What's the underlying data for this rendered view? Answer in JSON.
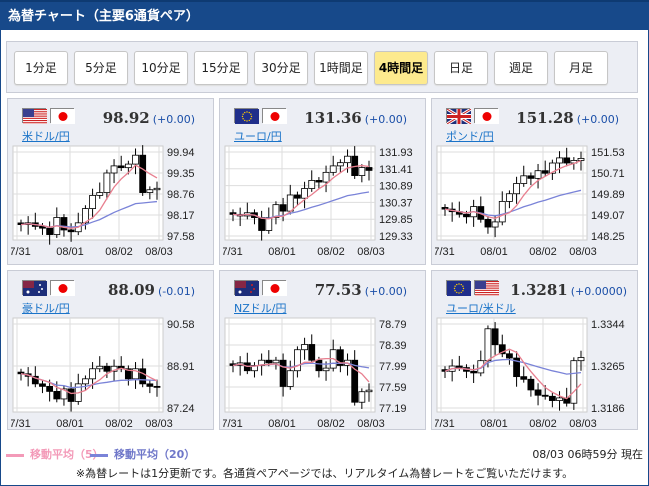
{
  "header": {
    "title": "為替チャート（主要6通貨ペア）"
  },
  "tabs": [
    {
      "label": "1分足"
    },
    {
      "label": "5分足"
    },
    {
      "label": "10分足"
    },
    {
      "label": "15分足"
    },
    {
      "label": "30分足"
    },
    {
      "label": "1時間足"
    },
    {
      "label": "4時間足",
      "active": true
    },
    {
      "label": "日足"
    },
    {
      "label": "週足"
    },
    {
      "label": "月足"
    }
  ],
  "colors": {
    "header": "#17498a",
    "active_tab": "#fdea8e",
    "ma5": "#e87f8f",
    "ma20": "#7a83d8",
    "change": "#1b4fa8",
    "link": "#1a73c8"
  },
  "panels": [
    {
      "pair": "米ドル/円",
      "flags": [
        "us-flag",
        "jp-flag"
      ],
      "price": "98.92",
      "change": "(+0.00)",
      "yticks": [
        "99.94",
        "99.35",
        "98.76",
        "98.17",
        "97.58"
      ],
      "xticks": [
        "07/31",
        "08/01",
        "08/02",
        "08/03"
      ],
      "chart_data": {
        "type": "candlestick",
        "ylim": [
          97.58,
          99.94
        ],
        "close": [
          97.9,
          97.95,
          97.85,
          97.8,
          97.62,
          98.1,
          97.75,
          97.7,
          97.95,
          98.35,
          98.72,
          98.8,
          99.35,
          99.55,
          99.5,
          99.6,
          99.85,
          98.8,
          98.88,
          98.92
        ]
      }
    },
    {
      "pair": "ユーロ/円",
      "flags": [
        "eu-flag",
        "jp-flag"
      ],
      "price": "131.36",
      "change": "(+0.00)",
      "yticks": [
        "131.93",
        "131.41",
        "130.89",
        "130.37",
        "129.85",
        "129.33"
      ],
      "xticks": [
        "07/31",
        "08/01",
        "08/02",
        "08/03"
      ],
      "chart_data": {
        "type": "candlestick",
        "ylim": [
          129.33,
          131.93
        ],
        "close": [
          130.0,
          129.95,
          130.05,
          129.9,
          129.5,
          129.9,
          130.3,
          130.1,
          130.6,
          130.5,
          130.8,
          131.05,
          131.0,
          131.3,
          131.5,
          131.6,
          131.8,
          131.2,
          131.45,
          131.36
        ]
      }
    },
    {
      "pair": "ポンド/円",
      "flags": [
        "uk-flag",
        "jp-flag"
      ],
      "price": "151.28",
      "change": "(+0.00)",
      "yticks": [
        "151.53",
        "150.71",
        "149.89",
        "149.07",
        "148.25"
      ],
      "xticks": [
        "07/31",
        "08/01",
        "08/02",
        "08/03"
      ],
      "chart_data": {
        "type": "candlestick",
        "ylim": [
          148.25,
          151.53
        ],
        "close": [
          149.3,
          149.2,
          149.1,
          149.0,
          149.4,
          148.9,
          148.6,
          148.8,
          149.6,
          149.9,
          150.3,
          150.6,
          150.5,
          150.8,
          150.7,
          151.1,
          151.3,
          151.1,
          151.2,
          151.28
        ]
      }
    },
    {
      "pair": "豪ドル/円",
      "flags": [
        "au-flag",
        "jp-flag"
      ],
      "price": "88.09",
      "change": "(-0.01)",
      "yticks": [
        "90.58",
        "88.91",
        "87.24"
      ],
      "xticks": [
        "07/31",
        "08/01",
        "08/02",
        "08/03"
      ],
      "chart_data": {
        "type": "candlestick",
        "ylim": [
          87.24,
          90.58
        ],
        "close": [
          88.6,
          88.5,
          88.2,
          88.1,
          87.9,
          87.6,
          88.0,
          87.5,
          88.2,
          88.4,
          88.8,
          88.9,
          88.7,
          88.9,
          88.8,
          88.4,
          88.8,
          88.2,
          88.1,
          88.09
        ]
      }
    },
    {
      "pair": "NZドル/円",
      "flags": [
        "nz-flag",
        "jp-flag"
      ],
      "price": "77.53",
      "change": "(+0.00)",
      "yticks": [
        "78.79",
        "78.39",
        "77.99",
        "77.59",
        "77.19"
      ],
      "xticks": [
        "07/31",
        "08/01",
        "08/02",
        "08/03"
      ],
      "chart_data": {
        "type": "candlestick",
        "ylim": [
          77.19,
          78.79
        ],
        "close": [
          78.0,
          78.05,
          77.9,
          78.0,
          78.1,
          78.05,
          78.1,
          77.6,
          77.9,
          78.3,
          78.4,
          78.1,
          77.9,
          77.95,
          78.3,
          78.0,
          78.1,
          77.3,
          77.5,
          77.53
        ]
      }
    },
    {
      "pair": "ユーロ/米ドル",
      "flags": [
        "eu-flag",
        "us-flag"
      ],
      "price": "1.3281",
      "change": "(+0.0000)",
      "yticks": [
        "1.3344",
        "1.3265",
        "1.3186"
      ],
      "xticks": [
        "07/31",
        "08/01",
        "08/02",
        "08/03"
      ],
      "chart_data": {
        "type": "candlestick",
        "ylim": [
          1.3186,
          1.3344
        ],
        "close": [
          1.3255,
          1.3265,
          1.3262,
          1.3255,
          1.3252,
          1.3275,
          1.3335,
          1.3305,
          1.3288,
          1.328,
          1.3245,
          1.324,
          1.322,
          1.321,
          1.3208,
          1.32,
          1.3205,
          1.3195,
          1.3275,
          1.3281
        ]
      }
    }
  ],
  "legend": [
    {
      "label": "移動平均（5）"
    },
    {
      "label": "移動平均（20）"
    }
  ],
  "timestamp": "08/03 06時59分 現在",
  "note": "※為替レートは1分更新です。各通貨ペアページでは、リアルタイム為替レートをご覧いただけます。"
}
